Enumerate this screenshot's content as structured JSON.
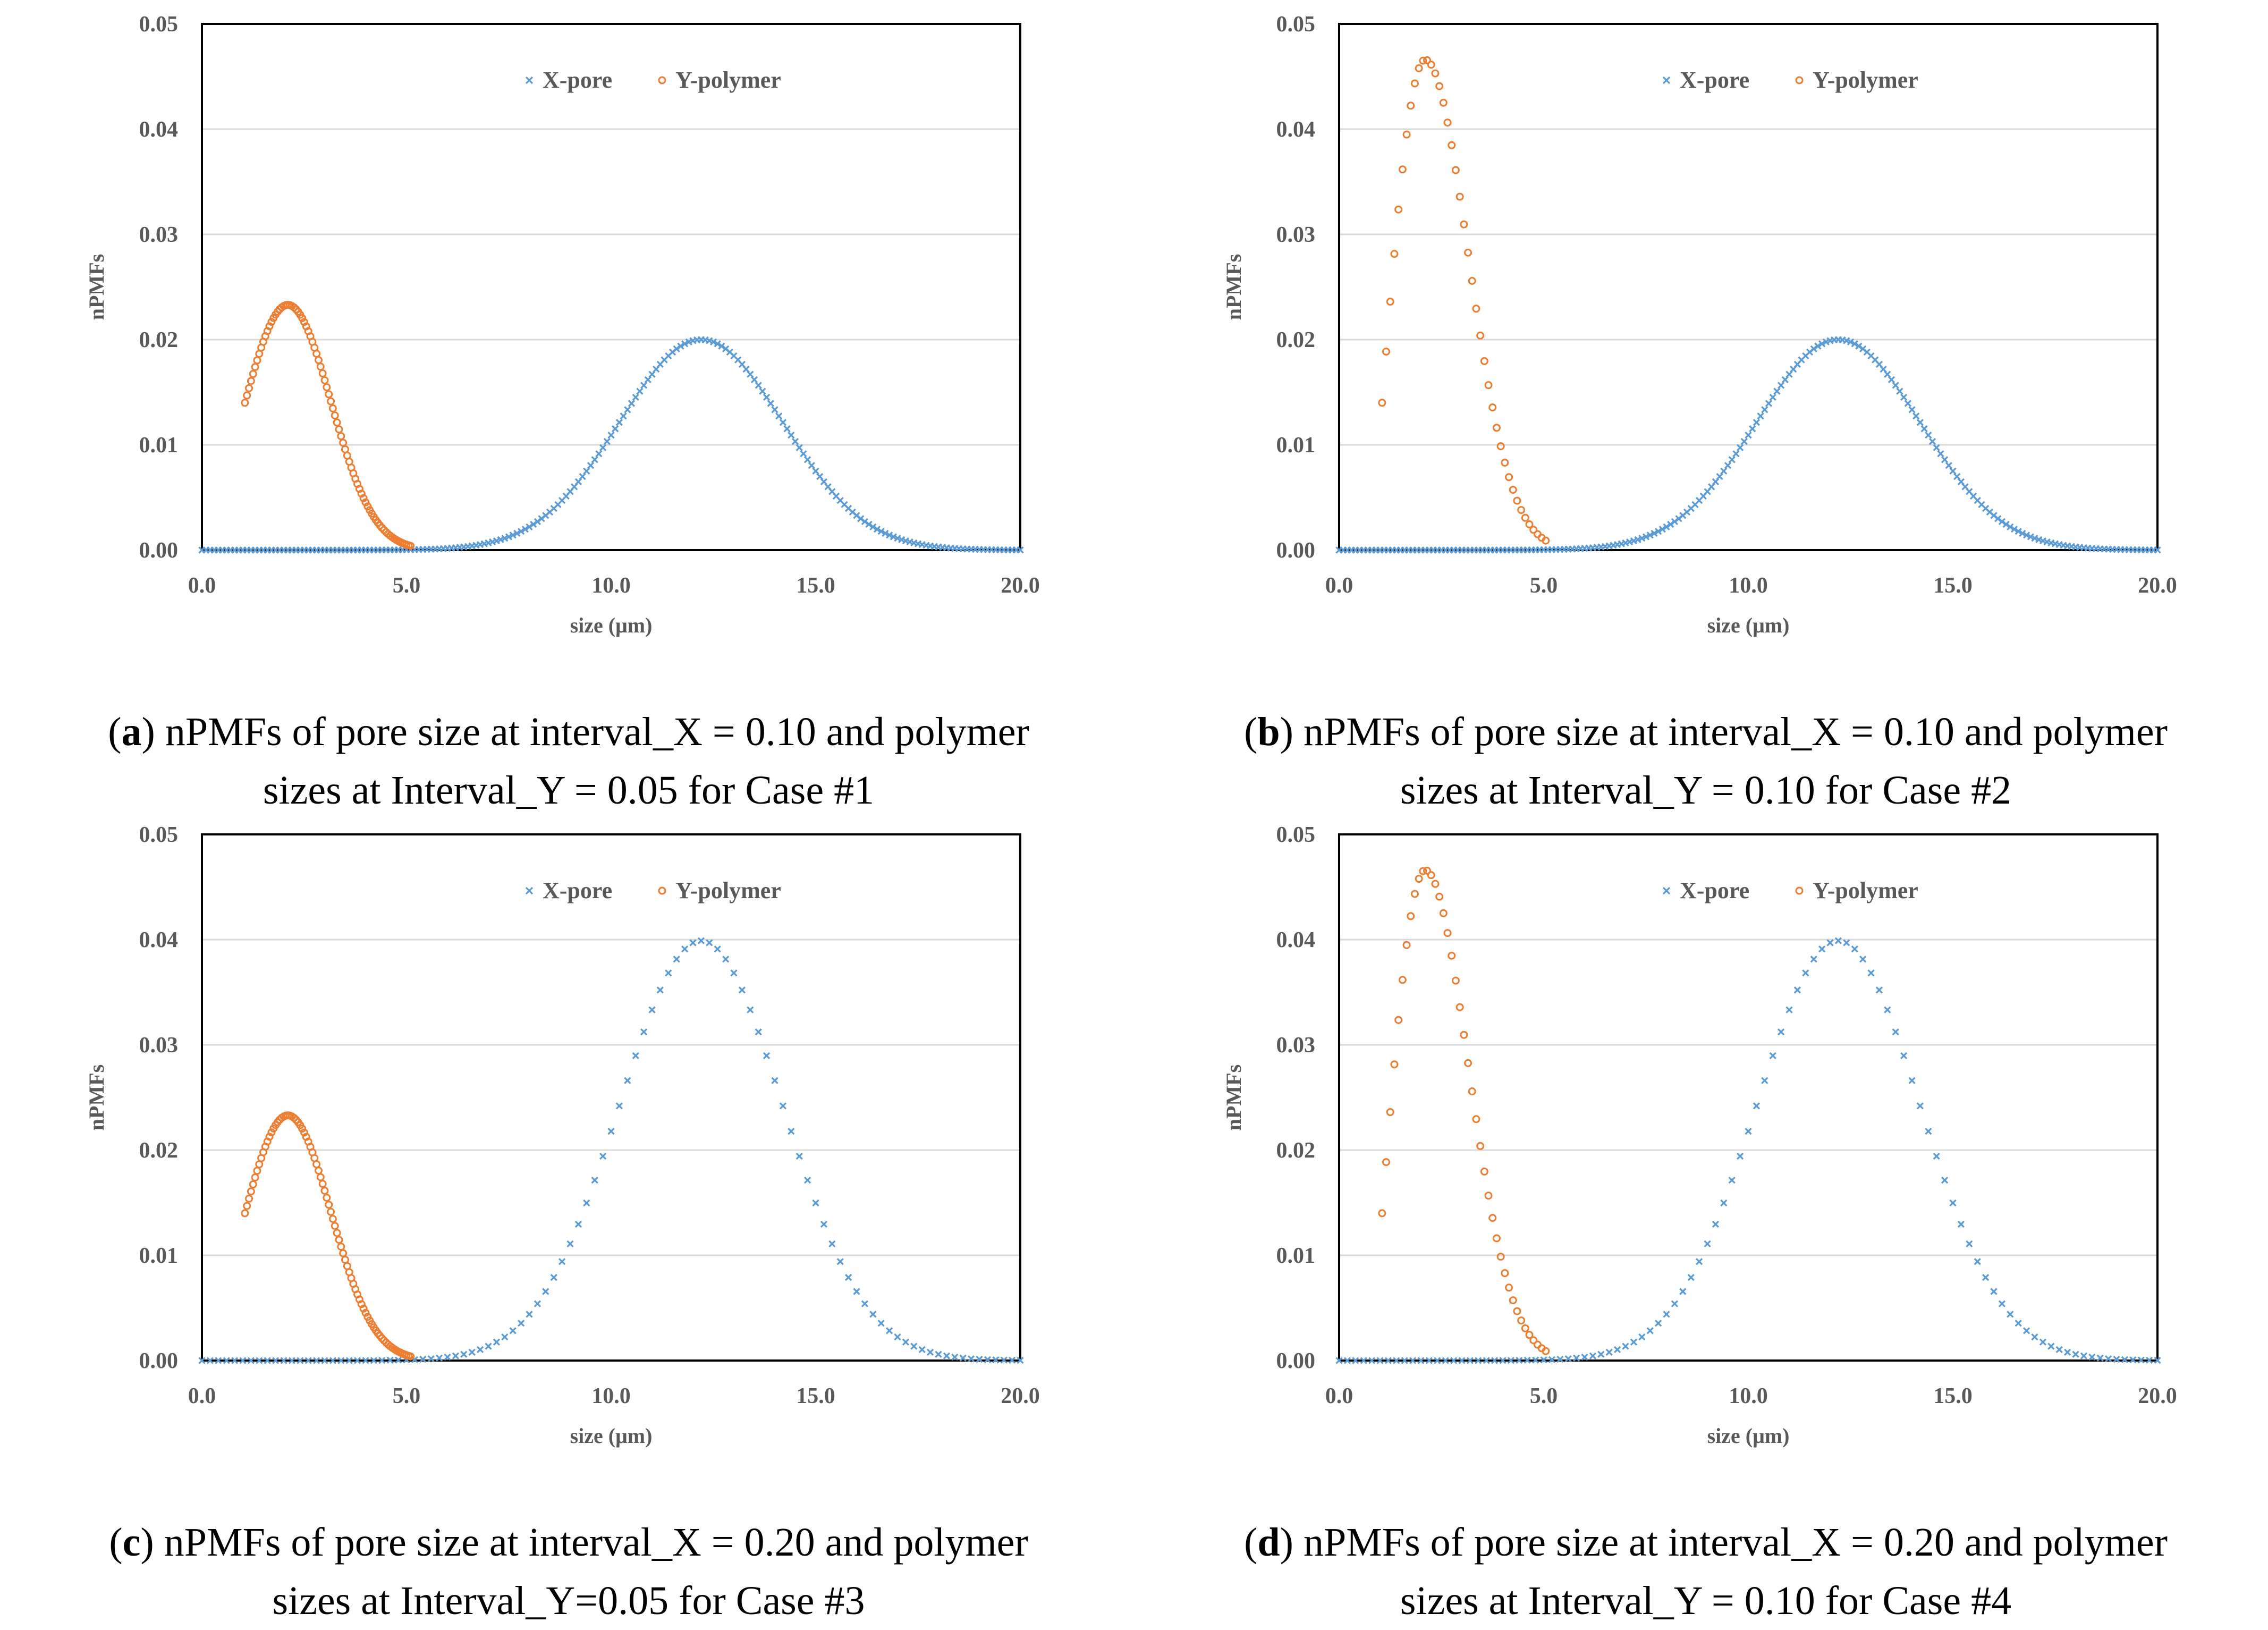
{
  "colors": {
    "x_pore": "#5b9bd5",
    "y_polymer": "#ed7d31",
    "grid": "#d9d9d9",
    "axis": "#000000",
    "text": "#595959"
  },
  "chart_data": [
    {
      "id": "a",
      "type": "scatter",
      "ylabel": "nPMFs",
      "xlabel": "size (μm)",
      "xlim": [
        0,
        20
      ],
      "ylim": [
        0,
        0.05
      ],
      "x_ticks": [
        "0.0",
        "5.0",
        "10.0",
        "15.0",
        "20.0"
      ],
      "y_ticks": [
        "0.00",
        "0.01",
        "0.02",
        "0.03",
        "0.04",
        "0.05"
      ],
      "legend": [
        "X-pore",
        "Y-polymer"
      ],
      "legend_position": "top-center",
      "series": [
        {
          "name": "X-pore",
          "distribution": "normal",
          "mean": 12.2,
          "sd": 2.0,
          "peak": 0.02,
          "x_start": 0.0,
          "x_end": 20.0,
          "interval": 0.1
        },
        {
          "name": "Y-polymer",
          "distribution": "skewed",
          "mode": 2.1,
          "peak": 0.0233,
          "start_value": 0.014,
          "x_start": 1.05,
          "x_end": 5.1,
          "interval": 0.05
        }
      ],
      "caption_letter": "a",
      "caption_line1": " nPMFs of pore size at interval_X = 0.10 and polymer",
      "caption_line2": "sizes at Interval_Y = 0.05 for Case #1"
    },
    {
      "id": "b",
      "type": "scatter",
      "ylabel": "nPMFs",
      "xlabel": "size (μm)",
      "xlim": [
        0,
        20
      ],
      "ylim": [
        0,
        0.05
      ],
      "x_ticks": [
        "0.0",
        "5.0",
        "10.0",
        "15.0",
        "20.0"
      ],
      "y_ticks": [
        "0.00",
        "0.01",
        "0.02",
        "0.03",
        "0.04",
        "0.05"
      ],
      "legend": [
        "X-pore",
        "Y-polymer"
      ],
      "legend_position": "top-center",
      "series": [
        {
          "name": "X-pore",
          "distribution": "normal",
          "mean": 12.2,
          "sd": 2.0,
          "peak": 0.02,
          "x_start": 0.0,
          "x_end": 20.0,
          "interval": 0.1
        },
        {
          "name": "Y-polymer",
          "distribution": "skewed",
          "mode": 2.1,
          "peak": 0.0466,
          "start_value": 0.014,
          "x_start": 1.05,
          "x_end": 5.1,
          "interval": 0.1
        }
      ],
      "caption_letter": "b",
      "caption_line1": " nPMFs of pore size at interval_X = 0.10 and polymer",
      "caption_line2": "sizes at Interval_Y = 0.10 for Case #2"
    },
    {
      "id": "c",
      "type": "scatter",
      "ylabel": "nPMFs",
      "xlabel": "size (μm)",
      "xlim": [
        0,
        20
      ],
      "ylim": [
        0,
        0.05
      ],
      "x_ticks": [
        "0.0",
        "5.0",
        "10.0",
        "15.0",
        "20.0"
      ],
      "y_ticks": [
        "0.00",
        "0.01",
        "0.02",
        "0.03",
        "0.04",
        "0.05"
      ],
      "legend": [
        "X-pore",
        "Y-polymer"
      ],
      "legend_position": "top-center",
      "series": [
        {
          "name": "X-pore",
          "distribution": "normal",
          "mean": 12.2,
          "sd": 2.0,
          "peak": 0.0399,
          "x_start": 0.0,
          "x_end": 20.0,
          "interval": 0.2
        },
        {
          "name": "Y-polymer",
          "distribution": "skewed",
          "mode": 2.1,
          "peak": 0.0233,
          "start_value": 0.014,
          "x_start": 1.05,
          "x_end": 5.1,
          "interval": 0.05
        }
      ],
      "caption_letter": "c",
      "caption_line1": " nPMFs of pore size at interval_X = 0.20 and polymer",
      "caption_line2": "sizes at Interval_Y=0.05 for Case #3"
    },
    {
      "id": "d",
      "type": "scatter",
      "ylabel": "nPMFs",
      "xlabel": "size (μm)",
      "xlim": [
        0,
        20
      ],
      "ylim": [
        0,
        0.05
      ],
      "x_ticks": [
        "0.0",
        "5.0",
        "10.0",
        "15.0",
        "20.0"
      ],
      "y_ticks": [
        "0.00",
        "0.01",
        "0.02",
        "0.03",
        "0.04",
        "0.05"
      ],
      "legend": [
        "X-pore",
        "Y-polymer"
      ],
      "legend_position": "top-center",
      "series": [
        {
          "name": "X-pore",
          "distribution": "normal",
          "mean": 12.2,
          "sd": 2.0,
          "peak": 0.0399,
          "x_start": 0.0,
          "x_end": 20.0,
          "interval": 0.2
        },
        {
          "name": "Y-polymer",
          "distribution": "skewed",
          "mode": 2.1,
          "peak": 0.0466,
          "start_value": 0.014,
          "x_start": 1.05,
          "x_end": 5.1,
          "interval": 0.1
        }
      ],
      "caption_letter": "d",
      "caption_line1": " nPMFs of pore size at interval_X = 0.20 and polymer",
      "caption_line2": "sizes at Interval_Y = 0.10 for Case #4"
    }
  ]
}
